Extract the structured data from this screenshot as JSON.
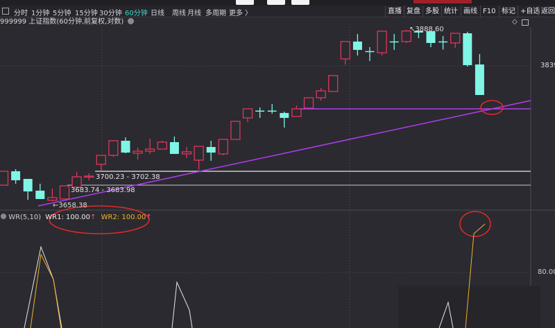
{
  "toolbar": {
    "periods": [
      "分时",
      "1分钟",
      "5分钟",
      "15分钟",
      "30分钟",
      "60分钟",
      "日线",
      "周线",
      "月线",
      "多周期",
      "更多 〉"
    ],
    "active_period": "60分钟",
    "right_buttons": [
      "直播",
      "复盘",
      "多股",
      "统计",
      "画线",
      "F10",
      "标记",
      "+自选",
      "返回"
    ]
  },
  "chart": {
    "title": "999999 上证指数(60分钟,前复权,对数)",
    "axis_label": "3839",
    "high_label": "3888.60",
    "low_label": "3658.38",
    "level1_label": "3700.23 - 3702.38",
    "level2_label": "3683.74 - 3683.98",
    "colors": {
      "up": "#e0365a",
      "down": "#7ff5e6",
      "trendline": "#b23cf0",
      "annotation": "#e02a2a"
    },
    "candles": [
      [
        3679.8,
        3698.5,
        3679.8,
        3698.5
      ],
      [
        3698.5,
        3701.3,
        3681.7,
        3686.4
      ],
      [
        3688.2,
        3688.2,
        3660,
        3671.4
      ],
      [
        3672.4,
        3681.7,
        3661.2,
        3661.2
      ],
      [
        3659.5,
        3675.2,
        3658.38,
        3663.1
      ],
      [
        3661.2,
        3678.9,
        3661.2,
        3678.9
      ],
      [
        3677.0,
        3697.5,
        3677.0,
        3691.0
      ],
      [
        3691.0,
        3695.7,
        3686.4,
        3692.0
      ],
      [
        3707.8,
        3719.9,
        3699.4,
        3719.9
      ],
      [
        3719.9,
        3739.5,
        3718.0,
        3739.5
      ],
      [
        3739.5,
        3744.1,
        3722.7,
        3723.6
      ],
      [
        3722.7,
        3730.2,
        3714.3,
        3725.5
      ],
      [
        3725.5,
        3742.3,
        3721.8,
        3728.3
      ],
      [
        3728.3,
        3739.5,
        3728.3,
        3737.6
      ],
      [
        3737.6,
        3745.1,
        3721.8,
        3721.8
      ],
      [
        3721.8,
        3731.1,
        3716.2,
        3724.6
      ],
      [
        3713.4,
        3732.0,
        3700.3,
        3732.0
      ],
      [
        3731.1,
        3739.5,
        3712.5,
        3723.6
      ],
      [
        3721.8,
        3741.3,
        3720,
        3741.3
      ],
      [
        3741.3,
        3766.5,
        3741.3,
        3765.6
      ],
      [
        3770.2,
        3782.4,
        3764.6,
        3782.4
      ],
      [
        3780.0,
        3784.2,
        3770.2,
        3779.6
      ],
      [
        3780.0,
        3788.9,
        3775.8,
        3779.6
      ],
      [
        3776.8,
        3778.6,
        3757.2,
        3770.2
      ],
      [
        3772.1,
        3787.0,
        3772.1,
        3782.4
      ],
      [
        3783.3,
        3797.3,
        3783.3,
        3797.3
      ],
      [
        3797.3,
        3810.3,
        3793.5,
        3806.6
      ],
      [
        3805.7,
        3827.1,
        3805.7,
        3827.1
      ],
      [
        3849.5,
        3872.8,
        3842.0,
        3872.8
      ],
      [
        3872.8,
        3883.0,
        3854.1,
        3861.6
      ],
      [
        3860,
        3865.3,
        3846.7,
        3859.7
      ],
      [
        3857.8,
        3886.7,
        3854.1,
        3886.7
      ],
      [
        3873,
        3883.0,
        3861.6,
        3872.8
      ],
      [
        3872.8,
        3888.6,
        3870.9,
        3887
      ],
      [
        3887,
        3888.6,
        3877.4,
        3884.9
      ],
      [
        3886.7,
        3886.7,
        3865.3,
        3870.9
      ],
      [
        3873,
        3880.2,
        3862,
        3872.8
      ],
      [
        3870.9,
        3883.9,
        3864.4,
        3883.9
      ],
      [
        3883.9,
        3886,
        3839.2,
        3841.1
      ],
      [
        3842,
        3856.0,
        3801.0,
        3801.0
      ]
    ]
  },
  "indicator": {
    "name": "WR(5,10)",
    "wr1_label": "WR1: 100.00",
    "wr2_label": "WR2: 100.00",
    "arrow": "↑",
    "axis_label": "80.00",
    "colors": {
      "wr1": "#e8e8ec",
      "wr2": "#f0b429"
    }
  }
}
